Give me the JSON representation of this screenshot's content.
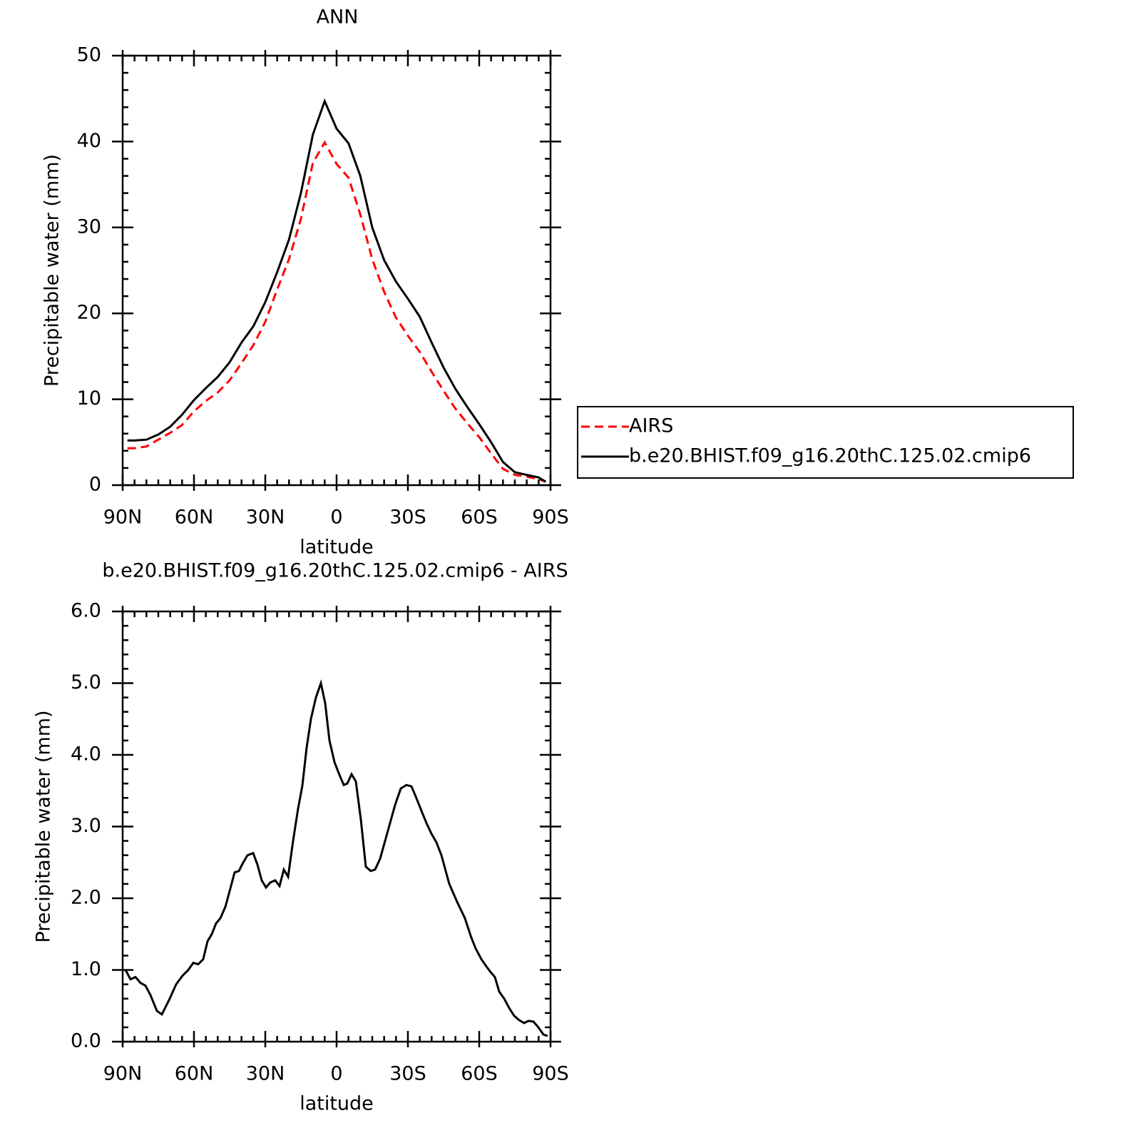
{
  "chart_data": [
    {
      "type": "line",
      "title": "ANN",
      "xlabel": "latitude",
      "ylabel": "Precipitable water (mm)",
      "xlim": [
        90,
        -90
      ],
      "ylim": [
        0,
        50
      ],
      "xticks": [
        {
          "value": 90,
          "label": "90N"
        },
        {
          "value": 60,
          "label": "60N"
        },
        {
          "value": 30,
          "label": "30N"
        },
        0,
        {
          "value": -30,
          "label": "30S"
        },
        {
          "value": -60,
          "label": "60S"
        },
        {
          "value": -90,
          "label": "90S"
        }
      ],
      "yticks": [
        0,
        10,
        20,
        30,
        40,
        50
      ],
      "legend": "right",
      "x": [
        88,
        85,
        80,
        75,
        70,
        65,
        60,
        55,
        50,
        45,
        40,
        35,
        30,
        25,
        20,
        15,
        10,
        5,
        0,
        -5,
        -10,
        -15,
        -20,
        -25,
        -30,
        -35,
        -40,
        -45,
        -50,
        -55,
        -60,
        -65,
        -70,
        -75,
        -80,
        -85,
        -88
      ],
      "series": [
        {
          "name": "AIRS",
          "color": "#ff0000",
          "linestyle": "dashed",
          "values": [
            4.3,
            4.3,
            4.5,
            5.3,
            6.1,
            7.0,
            8.6,
            9.8,
            10.8,
            12.2,
            14.2,
            16.3,
            19.0,
            22.8,
            26.3,
            31.0,
            37.5,
            39.9,
            37.4,
            35.8,
            31.5,
            26.3,
            22.5,
            19.5,
            17.4,
            15.5,
            13.2,
            11.0,
            8.9,
            7.2,
            5.6,
            3.7,
            1.9,
            1.2,
            1.0,
            0.7,
            0.4
          ]
        },
        {
          "name": "b.e20.BHIST.f09_g16.20thC.125.02.cmip6",
          "color": "#000000",
          "linestyle": "solid",
          "values": [
            5.2,
            5.2,
            5.3,
            5.9,
            6.8,
            8.2,
            9.9,
            11.3,
            12.6,
            14.3,
            16.6,
            18.5,
            21.3,
            24.8,
            28.6,
            34.0,
            40.8,
            44.7,
            41.5,
            39.8,
            36.0,
            30.0,
            26.2,
            23.7,
            21.7,
            19.6,
            16.6,
            13.7,
            11.2,
            9.1,
            7.1,
            5.0,
            2.7,
            1.5,
            1.2,
            0.9,
            0.4
          ]
        }
      ]
    },
    {
      "type": "line",
      "title": "b.e20.BHIST.f09_g16.20thC.125.02.cmip6 - AIRS",
      "xlabel": "latitude",
      "ylabel": "Precipitable water (mm)",
      "xlim": [
        90,
        -90
      ],
      "ylim": [
        0,
        6
      ],
      "xticks": [
        {
          "value": 90,
          "label": "90N"
        },
        {
          "value": 60,
          "label": "60N"
        },
        {
          "value": 30,
          "label": "30N"
        },
        0,
        {
          "value": -30,
          "label": "30S"
        },
        {
          "value": -60,
          "label": "60S"
        },
        {
          "value": -90,
          "label": "90S"
        }
      ],
      "yticks": [
        {
          "value": 0,
          "label": "0.0"
        },
        {
          "value": 1,
          "label": "1.0"
        },
        {
          "value": 2,
          "label": "2.0"
        },
        {
          "value": 3,
          "label": "3.0"
        },
        {
          "value": 4,
          "label": "4.0"
        },
        {
          "value": 5,
          "label": "5.0"
        },
        {
          "value": 6,
          "label": "6.0"
        }
      ],
      "color": "#000000",
      "x": [
        88.8,
        86.7,
        84.6,
        82.5,
        80.4,
        78.3,
        75.6,
        73.5,
        70.2,
        67.5,
        64.8,
        62.4,
        60.3,
        58.2,
        56.1,
        54.3,
        52.5,
        50.7,
        48.9,
        46.8,
        45,
        42.9,
        41.1,
        39.6,
        37.5,
        35.1,
        33.3,
        31.5,
        29.7,
        27.9,
        25.8,
        24,
        22.2,
        20.4,
        18.3,
        16.2,
        14.4,
        12.6,
        10.8,
        8.7,
        6.6,
        4.8,
        3,
        0.9,
        -1.2,
        -3,
        -4.5,
        -6.3,
        -8.1,
        -10.2,
        -12.3,
        -14.4,
        -16.2,
        -18.3,
        -20.4,
        -22.5,
        -24.6,
        -27,
        -29.4,
        -31.5,
        -33.3,
        -35.7,
        -37.8,
        -39.9,
        -42,
        -44.1,
        -47.4,
        -50.7,
        -54,
        -56.7,
        -58.5,
        -60.9,
        -63,
        -64.8,
        -66.6,
        -68.4,
        -70.5,
        -72.6,
        -74.7,
        -76.8,
        -78.9,
        -80.7,
        -82.8,
        -84.9,
        -87,
        -88.8
      ],
      "values": [
        1.0,
        0.87,
        0.9,
        0.82,
        0.78,
        0.65,
        0.43,
        0.38,
        0.6,
        0.8,
        0.92,
        1.0,
        1.1,
        1.08,
        1.15,
        1.4,
        1.5,
        1.65,
        1.72,
        1.88,
        2.1,
        2.36,
        2.38,
        2.48,
        2.6,
        2.63,
        2.47,
        2.25,
        2.15,
        2.22,
        2.25,
        2.17,
        2.4,
        2.3,
        2.8,
        3.25,
        3.57,
        4.1,
        4.5,
        4.8,
        5.0,
        4.72,
        4.2,
        3.9,
        3.72,
        3.58,
        3.6,
        3.73,
        3.63,
        3.1,
        2.44,
        2.38,
        2.4,
        2.55,
        2.8,
        3.05,
        3.3,
        3.53,
        3.58,
        3.56,
        3.42,
        3.22,
        3.05,
        2.9,
        2.78,
        2.6,
        2.2,
        1.95,
        1.72,
        1.45,
        1.3,
        1.15,
        1.05,
        0.97,
        0.9,
        0.7,
        0.6,
        0.47,
        0.36,
        0.3,
        0.26,
        0.29,
        0.28,
        0.2,
        0.1,
        0.08
      ]
    }
  ]
}
